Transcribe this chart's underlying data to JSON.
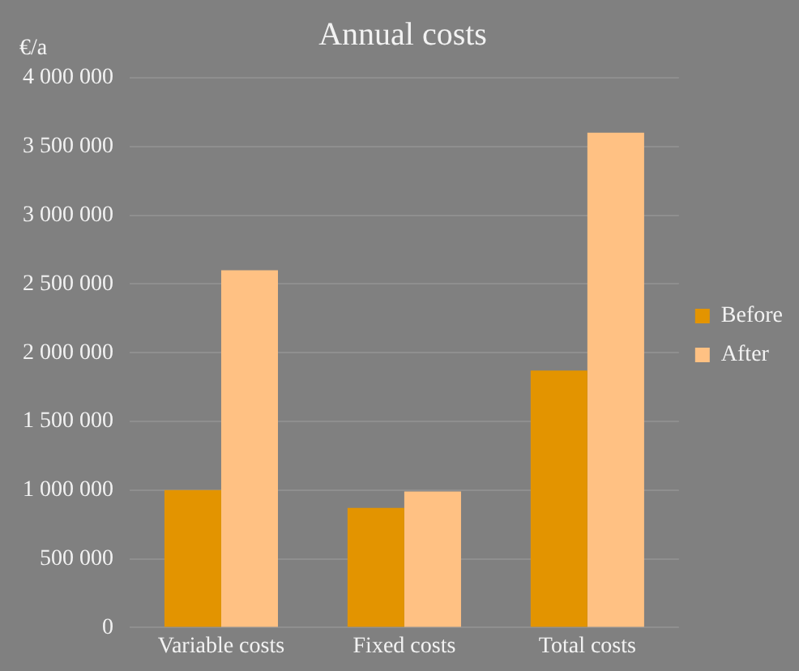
{
  "chart_data": {
    "type": "bar",
    "title": "Annual costs",
    "ylabel": "€/a",
    "categories": [
      "Variable costs",
      "Fixed costs",
      "Total costs"
    ],
    "series": [
      {
        "name": "Before",
        "color": "#e39400",
        "values": [
          1000000,
          870000,
          1870000
        ]
      },
      {
        "name": "After",
        "color": "#ffc183",
        "values": [
          2600000,
          990000,
          3600000
        ]
      }
    ],
    "ylim": [
      0,
      4000000
    ],
    "yticks": [
      {
        "value": 0,
        "label": "0"
      },
      {
        "value": 500000,
        "label": "500 000"
      },
      {
        "value": 1000000,
        "label": "1 000 000"
      },
      {
        "value": 1500000,
        "label": "1 500 000"
      },
      {
        "value": 2000000,
        "label": "2 000 000"
      },
      {
        "value": 2500000,
        "label": "2 500 000"
      },
      {
        "value": 3000000,
        "label": "3 000 000"
      },
      {
        "value": 3500000,
        "label": "3 500 000"
      },
      {
        "value": 4000000,
        "label": "4 000 000"
      }
    ],
    "grid": "y",
    "legend": "right"
  }
}
